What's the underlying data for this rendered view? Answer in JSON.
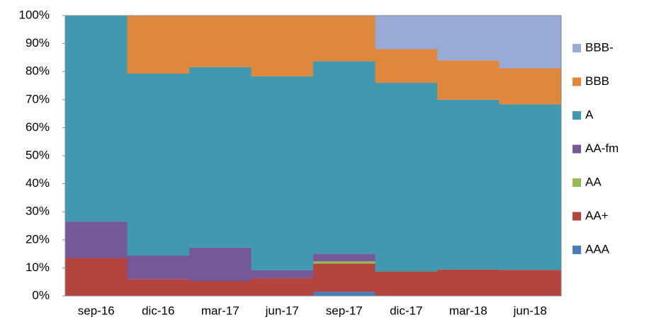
{
  "chart_data": {
    "type": "bar",
    "stacked": true,
    "categories": [
      "sep-16",
      "dic-16",
      "mar-17",
      "jun-17",
      "sep-17",
      "dic-17",
      "mar-18",
      "jun-18"
    ],
    "series": [
      {
        "name": "AAA",
        "color": "#4a7ebb",
        "values": [
          0,
          0,
          0,
          0,
          1.5,
          0,
          0,
          0
        ]
      },
      {
        "name": "AA+",
        "color": "#b5443f",
        "values": [
          13.5,
          6,
          5.3,
          6.3,
          10,
          8.7,
          9.4,
          9.3
        ]
      },
      {
        "name": "AA",
        "color": "#98b954",
        "values": [
          0,
          0,
          0,
          0,
          0.8,
          0,
          0,
          0
        ]
      },
      {
        "name": "AA-fm",
        "color": "#76589a",
        "values": [
          13,
          8.4,
          11.9,
          2.8,
          2.7,
          0,
          0,
          0
        ]
      },
      {
        "name": "A",
        "color": "#4099af",
        "values": [
          73.5,
          64.9,
          64.4,
          69.2,
          68.7,
          67.3,
          60.6,
          59
        ]
      },
      {
        "name": "BBB",
        "color": "#e0873e",
        "values": [
          0,
          20.7,
          18.4,
          21.7,
          16.3,
          12,
          14,
          12.9
        ]
      },
      {
        "name": "BBB-",
        "color": "#98abd6",
        "values": [
          0,
          0,
          0,
          0,
          0,
          12,
          16,
          18.8
        ]
      }
    ],
    "ylim": [
      0,
      100
    ],
    "yticks": [
      {
        "value": 0,
        "label": "0%"
      },
      {
        "value": 10,
        "label": "10%"
      },
      {
        "value": 20,
        "label": "20%"
      },
      {
        "value": 30,
        "label": "30%"
      },
      {
        "value": 40,
        "label": "40%"
      },
      {
        "value": 50,
        "label": "50%"
      },
      {
        "value": 60,
        "label": "60%"
      },
      {
        "value": 70,
        "label": "70%"
      },
      {
        "value": 80,
        "label": "80%"
      },
      {
        "value": 90,
        "label": "90%"
      },
      {
        "value": 100,
        "label": "100%"
      }
    ],
    "legend": "right"
  }
}
